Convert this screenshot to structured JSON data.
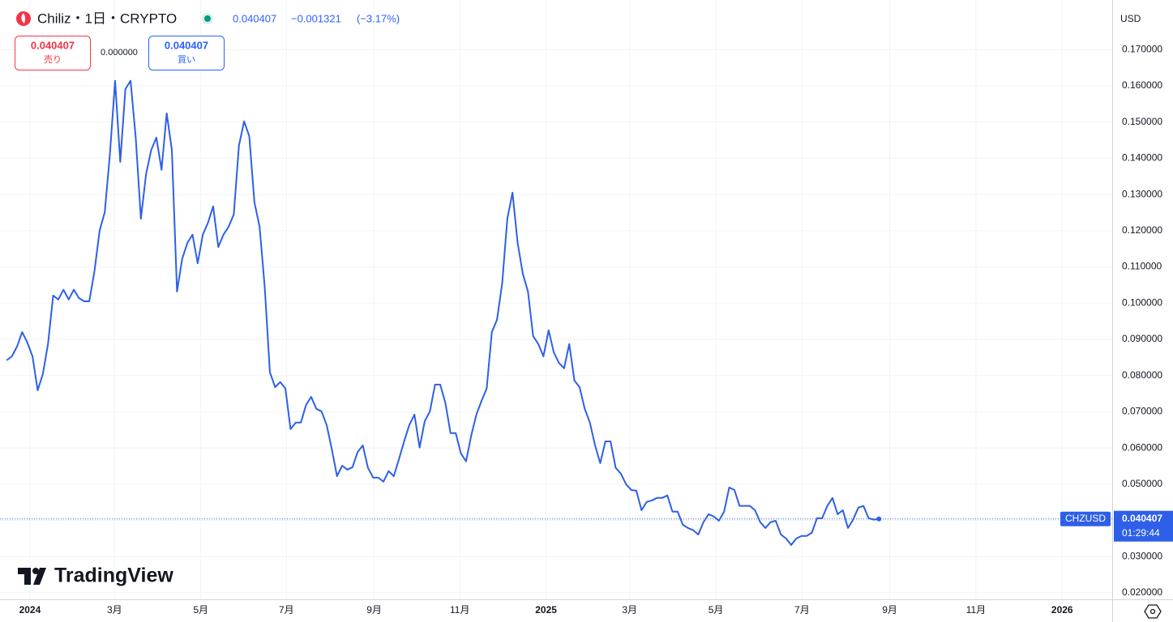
{
  "header": {
    "title": "Chiliz・1日・CRYPTO",
    "change": "−0.001321",
    "change_pct": "(−3.17%)",
    "spread": "0.000000",
    "sell": "売り",
    "buy": "買い",
    "y_unit": "USD",
    "countdown": "01:29:44",
    "logo": "TradingView"
  },
  "chart_data": {
    "type": "line",
    "price": 0.040407,
    "grid": true,
    "xlim": [
      2023.942,
      2026.097
    ],
    "ylim": [
      0.0182,
      0.1837
    ],
    "xticks": [
      2024,
      {
        "value": 2024.164,
        "label": "3月"
      },
      {
        "value": 2024.331,
        "label": "5月"
      },
      {
        "value": 2024.497,
        "label": "7月"
      },
      {
        "value": 2024.667,
        "label": "9月"
      },
      {
        "value": 2024.833,
        "label": "11月"
      },
      2025,
      {
        "value": 2025.162,
        "label": "3月"
      },
      {
        "value": 2025.329,
        "label": "5月"
      },
      {
        "value": 2025.496,
        "label": "7月"
      },
      {
        "value": 2025.666,
        "label": "9月"
      },
      {
        "value": 2025.833,
        "label": "11月"
      },
      2026
    ],
    "yticks": [
      {
        "value": 0.02,
        "label": "0.020000"
      },
      {
        "value": 0.03,
        "label": "0.030000"
      },
      {
        "value": 0.04,
        "label": "0.040000"
      },
      {
        "value": 0.05,
        "label": "0.050000"
      },
      {
        "value": 0.06,
        "label": "0.060000"
      },
      {
        "value": 0.07,
        "label": "0.070000"
      },
      {
        "value": 0.08,
        "label": "0.080000"
      },
      {
        "value": 0.09,
        "label": "0.090000"
      },
      {
        "value": 0.1,
        "label": "0.100000"
      },
      {
        "value": 0.11,
        "label": "0.110000"
      },
      {
        "value": 0.12,
        "label": "0.120000"
      },
      {
        "value": 0.13,
        "label": "0.130000"
      },
      {
        "value": 0.14,
        "label": "0.140000"
      },
      {
        "value": 0.15,
        "label": "0.150000"
      },
      {
        "value": 0.16,
        "label": "0.160000"
      },
      {
        "value": 0.17,
        "label": "0.170000"
      }
    ],
    "x": [
      2023.955,
      2023.965,
      2023.975,
      2023.985,
      2023.995,
      2024.005,
      2024.015,
      2024.025,
      2024.035,
      2024.045,
      2024.055,
      2024.065,
      2024.075,
      2024.085,
      2024.095,
      2024.105,
      2024.115,
      2024.125,
      2024.135,
      2024.145,
      2024.155,
      2024.165,
      2024.175,
      2024.185,
      2024.195,
      2024.205,
      2024.215,
      2024.225,
      2024.235,
      2024.245,
      2024.255,
      2024.265,
      2024.275,
      2024.285,
      2024.295,
      2024.305,
      2024.315,
      2024.325,
      2024.335,
      2024.345,
      2024.355,
      2024.365,
      2024.375,
      2024.385,
      2024.395,
      2024.405,
      2024.415,
      2024.425,
      2024.435,
      2024.445,
      2024.455,
      2024.465,
      2024.475,
      2024.485,
      2024.495,
      2024.505,
      2024.515,
      2024.525,
      2024.535,
      2024.545,
      2024.555,
      2024.565,
      2024.575,
      2024.585,
      2024.595,
      2024.605,
      2024.615,
      2024.625,
      2024.635,
      2024.645,
      2024.655,
      2024.665,
      2024.675,
      2024.685,
      2024.695,
      2024.705,
      2024.715,
      2024.725,
      2024.735,
      2024.745,
      2024.755,
      2024.765,
      2024.775,
      2024.785,
      2024.795,
      2024.805,
      2024.815,
      2024.825,
      2024.835,
      2024.845,
      2024.855,
      2024.865,
      2024.875,
      2024.885,
      2024.895,
      2024.905,
      2024.915,
      2024.925,
      2024.935,
      2024.945,
      2024.955,
      2024.965,
      2024.975,
      2024.985,
      2024.995,
      2025.005,
      2025.015,
      2025.025,
      2025.035,
      2025.045,
      2025.055,
      2025.065,
      2025.075,
      2025.085,
      2025.095,
      2025.105,
      2025.115,
      2025.125,
      2025.135,
      2025.145,
      2025.155,
      2025.165,
      2025.175,
      2025.185,
      2025.195,
      2025.205,
      2025.215,
      2025.225,
      2025.235,
      2025.245,
      2025.255,
      2025.265,
      2025.275,
      2025.285,
      2025.295,
      2025.305,
      2025.315,
      2025.325,
      2025.335,
      2025.345,
      2025.355,
      2025.365,
      2025.375,
      2025.385,
      2025.395,
      2025.405,
      2025.415,
      2025.425,
      2025.435,
      2025.445,
      2025.455,
      2025.465,
      2025.475,
      2025.485,
      2025.495,
      2025.505,
      2025.515,
      2025.525,
      2025.535,
      2025.545,
      2025.555,
      2025.565,
      2025.575,
      2025.585,
      2025.595,
      2025.605,
      2025.615,
      2025.625,
      2025.635,
      2025.645
    ],
    "series": [
      {
        "name": "CHZUSD",
        "color": "#2e5fe8",
        "values": [
          0.0842,
          0.0853,
          0.088,
          0.092,
          0.0891,
          0.0853,
          0.0759,
          0.0804,
          0.0887,
          0.1021,
          0.101,
          0.1037,
          0.101,
          0.1037,
          0.1014,
          0.1005,
          0.1005,
          0.1088,
          0.12,
          0.1251,
          0.1412,
          0.1614,
          0.139,
          0.1591,
          0.1614,
          0.1457,
          0.1233,
          0.1356,
          0.1423,
          0.1457,
          0.1368,
          0.1524,
          0.1423,
          0.1032,
          0.1122,
          0.1166,
          0.1189,
          0.111,
          0.1189,
          0.1222,
          0.1267,
          0.1155,
          0.1189,
          0.1211,
          0.1245,
          0.1435,
          0.1502,
          0.1461,
          0.1278,
          0.1211,
          0.1043,
          0.0809,
          0.0768,
          0.0782,
          0.0764,
          0.0652,
          0.067,
          0.067,
          0.0719,
          0.0741,
          0.0708,
          0.0701,
          0.0663,
          0.0596,
          0.0522,
          0.0551,
          0.054,
          0.0547,
          0.0589,
          0.0607,
          0.0545,
          0.0518,
          0.0518,
          0.0507,
          0.0536,
          0.0522,
          0.0569,
          0.0618,
          0.0663,
          0.0692,
          0.0601,
          0.0674,
          0.0701,
          0.0775,
          0.0775,
          0.0724,
          0.0641,
          0.0641,
          0.0585,
          0.0563,
          0.0634,
          0.0692,
          0.073,
          0.0764,
          0.092,
          0.0954,
          0.1054,
          0.1233,
          0.1305,
          0.1166,
          0.1081,
          0.1032,
          0.0909,
          0.0887,
          0.0853,
          0.0925,
          0.0864,
          0.0835,
          0.082,
          0.0887,
          0.0786,
          0.0768,
          0.0708,
          0.067,
          0.0607,
          0.0558,
          0.0618,
          0.0618,
          0.0545,
          0.0529,
          0.05,
          0.0484,
          0.0482,
          0.0428,
          0.0451,
          0.0455,
          0.0462,
          0.0462,
          0.0469,
          0.0424,
          0.0424,
          0.0388,
          0.0379,
          0.0373,
          0.0361,
          0.0395,
          0.0417,
          0.0411,
          0.0399,
          0.0424,
          0.0491,
          0.0484,
          0.044,
          0.044,
          0.044,
          0.0428,
          0.0395,
          0.0379,
          0.0395,
          0.0399,
          0.0361,
          0.035,
          0.0332,
          0.035,
          0.0357,
          0.0357,
          0.0366,
          0.0406,
          0.0406,
          0.044,
          0.0462,
          0.0417,
          0.0428,
          0.0379,
          0.0402,
          0.0435,
          0.044,
          0.0406,
          0.0402,
          0.0404
        ]
      }
    ]
  }
}
